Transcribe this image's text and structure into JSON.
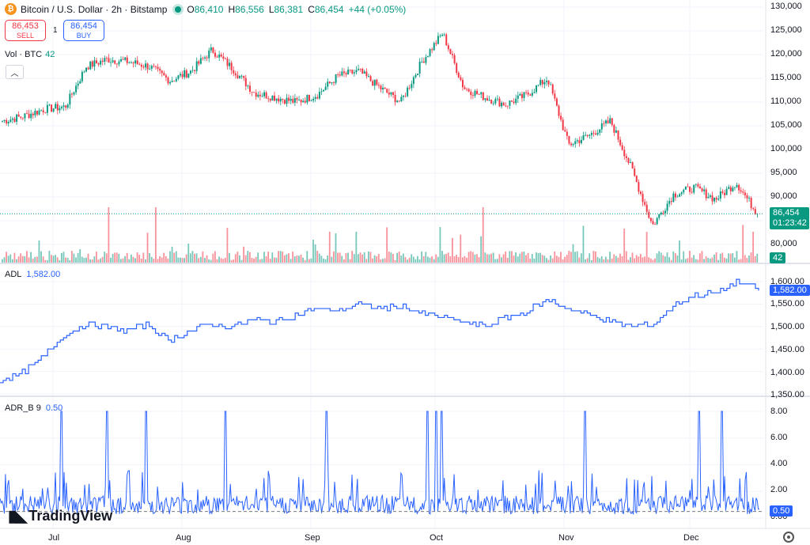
{
  "header": {
    "symbol": "Bitcoin / U.S. Dollar · 2h · Bitstamp",
    "ohlc": {
      "o_label": "O",
      "o": "86,410",
      "h_label": "H",
      "h": "86,556",
      "l_label": "L",
      "l": "86,381",
      "c_label": "C",
      "c": "86,454",
      "change": "+44 (+0.05%)"
    }
  },
  "trade": {
    "sell_value": "86,453",
    "sell_label": "SELL",
    "spread": "1",
    "buy_value": "86,454",
    "buy_label": "BUY"
  },
  "volume": {
    "label": "Vol · BTC",
    "value": "42",
    "axis_tag": "42"
  },
  "collapse_icon": "chevron-up-icon",
  "price_axis": {
    "ticks": [
      "130,000",
      "125,000",
      "120,000",
      "115,000",
      "110,000",
      "105,000",
      "100,000",
      "95,000",
      "90,000",
      "80,000"
    ],
    "current_price": "86,454",
    "countdown": "01:23:42"
  },
  "adl": {
    "label": "ADL",
    "value": "1,582.00",
    "axis_tag": "1,582.00",
    "ticks": [
      "1,600.00",
      "1,550.00",
      "1,500.00",
      "1,450.00",
      "1,400.00",
      "1,350.00"
    ]
  },
  "adr": {
    "label": "ADR_B 9",
    "value": "0.50",
    "axis_tag": "0.50",
    "ticks": [
      "8.00",
      "6.00",
      "4.00",
      "2.00",
      "0.00"
    ]
  },
  "x_axis": {
    "labels": [
      "Jul",
      "Aug",
      "Sep",
      "Oct",
      "Nov",
      "Dec"
    ]
  },
  "logo_text": "TradingView",
  "colors": {
    "up": "#089981",
    "down": "#f23645",
    "indicator": "#2962ff",
    "grid": "#f0f3fa"
  },
  "chart_data": [
    {
      "type": "candlestick",
      "x": [
        "Jun 26",
        "Jul 1",
        "Jul 6",
        "Jul 10",
        "Jul 14",
        "Jul 19",
        "Jul 24",
        "Jul 29",
        "Aug 3",
        "Aug 8",
        "Aug 13",
        "Aug 18",
        "Aug 23",
        "Aug 28",
        "Sep 2",
        "Sep 7",
        "Sep 12",
        "Sep 17",
        "Sep 22",
        "Sep 27",
        "Oct 1",
        "Oct 6",
        "Oct 11",
        "Oct 15",
        "Oct 20",
        "Oct 25",
        "Oct 30",
        "Nov 4",
        "Nov 9",
        "Nov 13",
        "Nov 18",
        "Nov 22",
        "Nov 27",
        "Dec 2",
        "Dec 6",
        "Dec 11",
        "Dec 15"
      ],
      "close": [
        106000,
        107000,
        108500,
        109000,
        117500,
        119000,
        118500,
        117500,
        114500,
        116500,
        121000,
        117000,
        112000,
        111000,
        110000,
        111500,
        115500,
        116500,
        113000,
        110000,
        118500,
        124500,
        113000,
        111000,
        109500,
        111500,
        115000,
        101000,
        103000,
        106000,
        96000,
        84000,
        90500,
        92000,
        89500,
        93000,
        86454
      ],
      "ylim": [
        78000,
        130000
      ],
      "volume_ylim": [
        0,
        150
      ]
    },
    {
      "type": "line",
      "name": "ADL",
      "x": [
        "Jun 26",
        "Jul 1",
        "Jul 6",
        "Jul 10",
        "Jul 14",
        "Jul 19",
        "Jul 24",
        "Jul 29",
        "Aug 3",
        "Aug 8",
        "Aug 13",
        "Aug 18",
        "Aug 23",
        "Aug 28",
        "Sep 2",
        "Sep 7",
        "Sep 12",
        "Sep 17",
        "Sep 22",
        "Sep 27",
        "Oct 1",
        "Oct 6",
        "Oct 11",
        "Oct 15",
        "Oct 20",
        "Oct 25",
        "Oct 30",
        "Nov 4",
        "Nov 9",
        "Nov 13",
        "Nov 18",
        "Nov 22",
        "Nov 27",
        "Dec 2",
        "Dec 6",
        "Dec 11",
        "Dec 15"
      ],
      "values": [
        1380,
        1395,
        1430,
        1480,
        1505,
        1500,
        1490,
        1505,
        1470,
        1490,
        1505,
        1500,
        1515,
        1510,
        1525,
        1540,
        1535,
        1550,
        1540,
        1545,
        1530,
        1520,
        1510,
        1500,
        1520,
        1535,
        1560,
        1540,
        1525,
        1510,
        1500,
        1505,
        1550,
        1570,
        1575,
        1600,
        1582
      ],
      "ylim": [
        1340,
        1620
      ]
    },
    {
      "type": "line",
      "name": "ADR_B 9",
      "spikes_at_8": 11,
      "baseline": 0.5,
      "typical_range": [
        0,
        2
      ],
      "ylim": [
        0,
        8.5
      ]
    }
  ]
}
